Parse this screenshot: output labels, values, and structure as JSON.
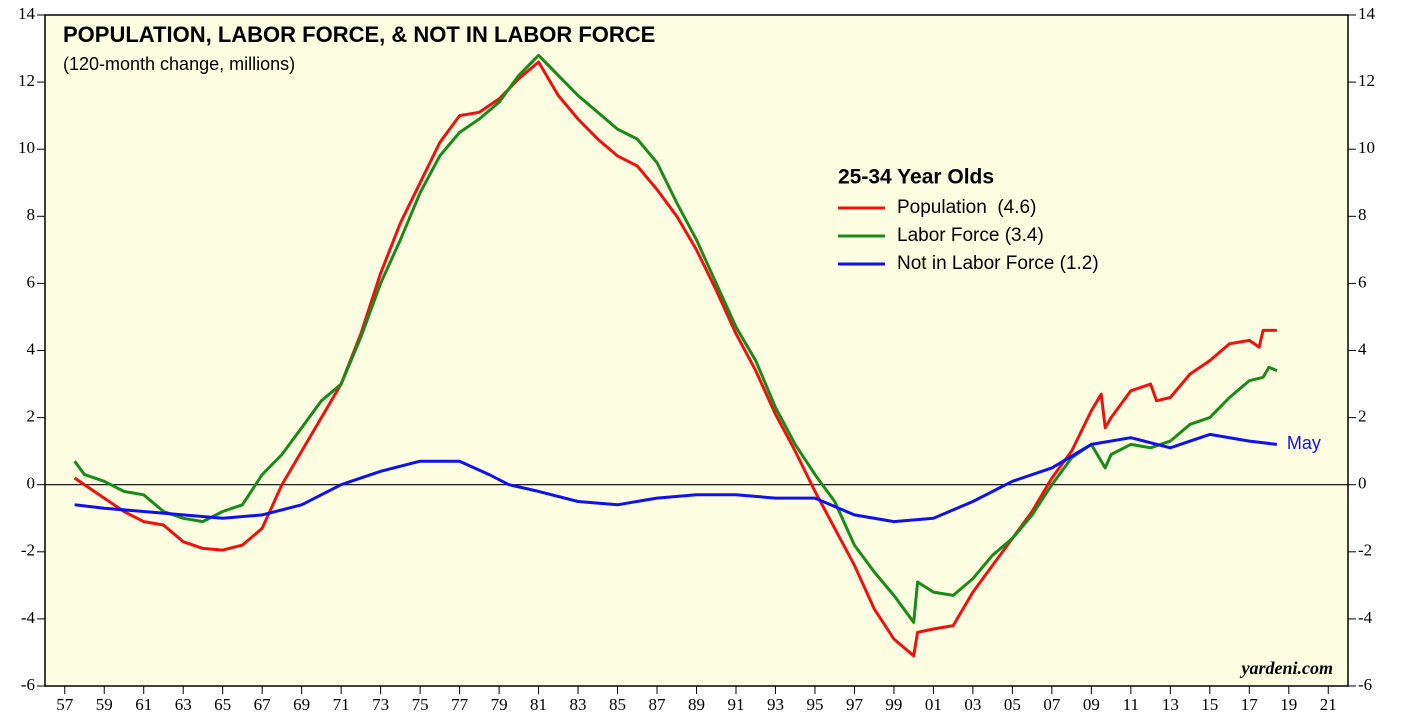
{
  "chart_data": {
    "type": "line",
    "title": "POPULATION, LABOR FORCE, & NOT IN LABOR FORCE",
    "subtitle": "(120-month change, millions)",
    "legend_title": "25-34 Year Olds",
    "annotation": "May",
    "watermark": "yardeni.com",
    "xlim": [
      1956,
      2022
    ],
    "ylim": [
      -6,
      14
    ],
    "yticks": [
      -6,
      -4,
      -2,
      0,
      2,
      4,
      6,
      8,
      10,
      12,
      14
    ],
    "xticks": [
      {
        "value": 1957,
        "label": "57"
      },
      {
        "value": 1959,
        "label": "59"
      },
      {
        "value": 1961,
        "label": "61"
      },
      {
        "value": 1963,
        "label": "63"
      },
      {
        "value": 1965,
        "label": "65"
      },
      {
        "value": 1967,
        "label": "67"
      },
      {
        "value": 1969,
        "label": "69"
      },
      {
        "value": 1971,
        "label": "71"
      },
      {
        "value": 1973,
        "label": "73"
      },
      {
        "value": 1975,
        "label": "75"
      },
      {
        "value": 1977,
        "label": "77"
      },
      {
        "value": 1979,
        "label": "79"
      },
      {
        "value": 1981,
        "label": "81"
      },
      {
        "value": 1983,
        "label": "83"
      },
      {
        "value": 1985,
        "label": "85"
      },
      {
        "value": 1987,
        "label": "87"
      },
      {
        "value": 1989,
        "label": "89"
      },
      {
        "value": 1991,
        "label": "91"
      },
      {
        "value": 1993,
        "label": "93"
      },
      {
        "value": 1995,
        "label": "95"
      },
      {
        "value": 1997,
        "label": "97"
      },
      {
        "value": 1999,
        "label": "99"
      },
      {
        "value": 2001,
        "label": "01"
      },
      {
        "value": 2003,
        "label": "03"
      },
      {
        "value": 2005,
        "label": "05"
      },
      {
        "value": 2007,
        "label": "07"
      },
      {
        "value": 2009,
        "label": "09"
      },
      {
        "value": 2011,
        "label": "11"
      },
      {
        "value": 2013,
        "label": "13"
      },
      {
        "value": 2015,
        "label": "15"
      },
      {
        "value": 2017,
        "label": "17"
      },
      {
        "value": 2019,
        "label": "19"
      },
      {
        "value": 2021,
        "label": "21"
      }
    ],
    "series": [
      {
        "name": "Population  (4.6)",
        "color": "#ee1111",
        "x": [
          1957.5,
          1959,
          1960,
          1961,
          1962,
          1963,
          1964,
          1965,
          1966,
          1967,
          1968,
          1969,
          1970,
          1971,
          1972,
          1973,
          1974,
          1975,
          1976,
          1977,
          1978,
          1979,
          1980,
          1981,
          1982,
          1983,
          1984,
          1985,
          1986,
          1987,
          1988,
          1989,
          1990,
          1991,
          1992,
          1993,
          1994,
          1995,
          1996,
          1997,
          1998,
          1999,
          2000,
          2000.2,
          2001,
          2002,
          2003,
          2004,
          2005,
          2006,
          2007,
          2008,
          2009,
          2009.5,
          2009.7,
          2010,
          2011,
          2012,
          2012.3,
          2013,
          2014,
          2015,
          2016,
          2017,
          2017.5,
          2017.7,
          2018.4
        ],
        "values": [
          0.2,
          -0.4,
          -0.8,
          -1.1,
          -1.2,
          -1.7,
          -1.9,
          -1.95,
          -1.8,
          -1.3,
          0,
          1.0,
          2.0,
          3.0,
          4.5,
          6.3,
          7.8,
          9.0,
          10.2,
          11.0,
          11.1,
          11.5,
          12.1,
          12.6,
          11.6,
          10.9,
          10.3,
          9.8,
          9.5,
          8.8,
          8.0,
          7.0,
          5.8,
          4.5,
          3.4,
          2.1,
          1.0,
          -0.2,
          -1.3,
          -2.4,
          -3.7,
          -4.6,
          -5.1,
          -4.4,
          -4.3,
          -4.2,
          -3.2,
          -2.4,
          -1.6,
          -0.8,
          0.2,
          1.0,
          2.2,
          2.7,
          1.7,
          2.0,
          2.8,
          3.0,
          2.5,
          2.6,
          3.3,
          3.7,
          4.2,
          4.3,
          4.1,
          4.6,
          4.6
        ]
      },
      {
        "name": "Labor Force (3.4)",
        "color": "#1a8a1a",
        "x": [
          1957.5,
          1958,
          1959,
          1960,
          1961,
          1962,
          1963,
          1964,
          1965,
          1966,
          1967,
          1968,
          1969,
          1970,
          1971,
          1972,
          1973,
          1974,
          1975,
          1976,
          1977,
          1978,
          1979,
          1980,
          1981,
          1982,
          1983,
          1984,
          1985,
          1986,
          1987,
          1988,
          1989,
          1990,
          1991,
          1992,
          1993,
          1994,
          1995,
          1996,
          1997,
          1998,
          1999,
          2000,
          2000.2,
          2001,
          2002,
          2003,
          2004,
          2005,
          2006,
          2007,
          2008,
          2009,
          2009.7,
          2010,
          2011,
          2012,
          2013,
          2014,
          2015,
          2016,
          2017,
          2017.7,
          2018,
          2018.4
        ],
        "values": [
          0.7,
          0.3,
          0.1,
          -0.2,
          -0.3,
          -0.8,
          -1.0,
          -1.1,
          -0.8,
          -0.6,
          0.3,
          0.9,
          1.7,
          2.5,
          3.0,
          4.4,
          6.0,
          7.3,
          8.7,
          9.8,
          10.5,
          10.9,
          11.4,
          12.2,
          12.8,
          12.2,
          11.6,
          11.1,
          10.6,
          10.3,
          9.6,
          8.4,
          7.3,
          6.0,
          4.7,
          3.7,
          2.3,
          1.2,
          0.3,
          -0.5,
          -1.8,
          -2.6,
          -3.3,
          -4.1,
          -2.9,
          -3.2,
          -3.3,
          -2.8,
          -2.1,
          -1.6,
          -0.9,
          0.0,
          0.8,
          1.2,
          0.5,
          0.9,
          1.2,
          1.1,
          1.3,
          1.8,
          2.0,
          2.6,
          3.1,
          3.2,
          3.5,
          3.4
        ]
      },
      {
        "name": "Not in Labor Force (1.2)",
        "color": "#1111ee",
        "x": [
          1957.5,
          1959,
          1961,
          1963,
          1965,
          1967,
          1969,
          1971,
          1973,
          1975,
          1977,
          1978.5,
          1979.5,
          1981,
          1983,
          1985,
          1987,
          1989,
          1991,
          1993,
          1995,
          1997,
          1999,
          2001,
          2003,
          2005,
          2007,
          2009,
          2011,
          2013,
          2015,
          2017,
          2018.4
        ],
        "values": [
          -0.6,
          -0.7,
          -0.8,
          -0.9,
          -1.0,
          -0.9,
          -0.6,
          0.0,
          0.4,
          0.7,
          0.7,
          0.3,
          0.0,
          -0.2,
          -0.5,
          -0.6,
          -0.4,
          -0.3,
          -0.3,
          -0.4,
          -0.4,
          -0.9,
          -1.1,
          -1.0,
          -0.5,
          0.1,
          0.5,
          1.2,
          1.4,
          1.1,
          1.5,
          1.3,
          1.2
        ]
      }
    ]
  }
}
